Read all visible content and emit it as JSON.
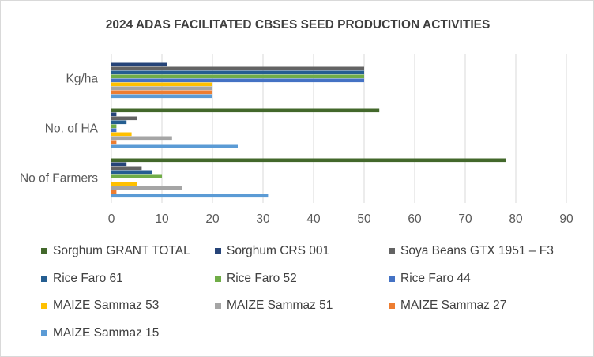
{
  "chart_data": {
    "type": "bar",
    "orientation": "horizontal",
    "title": "2024 ADAS FACILITATED CBSES SEED PRODUCTION ACTIVITIES",
    "categories": [
      "No of Farmers",
      "No. of HA",
      "Kg/ha"
    ],
    "xlim": [
      0,
      90
    ],
    "xticks": [
      0,
      10,
      20,
      30,
      40,
      50,
      60,
      70,
      80,
      90
    ],
    "grid": true,
    "legend_position": "bottom",
    "series": [
      {
        "name": "MAIZE Sammaz 15",
        "color": "#5b9bd5",
        "values": [
          31,
          25,
          20
        ]
      },
      {
        "name": "MAIZE Sammaz 27",
        "color": "#ed7d31",
        "values": [
          1,
          1,
          20
        ]
      },
      {
        "name": "MAIZE Sammaz 51",
        "color": "#a5a5a5",
        "values": [
          14,
          12,
          20
        ]
      },
      {
        "name": "MAIZE Sammaz 53",
        "color": "#ffc000",
        "values": [
          5,
          4,
          20
        ]
      },
      {
        "name": "Rice Faro 44",
        "color": "#4472c4",
        "values": [
          0,
          1,
          50
        ]
      },
      {
        "name": "Rice Faro 52",
        "color": "#70ad47",
        "values": [
          10,
          1,
          50
        ]
      },
      {
        "name": "Rice Faro 61",
        "color": "#255e91",
        "values": [
          8,
          3,
          50
        ]
      },
      {
        "name": "Soya Beans GTX 1951 – F3",
        "color": "#636363",
        "values": [
          6,
          5,
          50
        ]
      },
      {
        "name": "Sorghum CRS 001",
        "color": "#264478",
        "values": [
          3,
          1,
          11
        ]
      },
      {
        "name": "Sorghum GRANT TOTAL",
        "color": "#43682b",
        "values": [
          78,
          53,
          0
        ]
      }
    ]
  }
}
